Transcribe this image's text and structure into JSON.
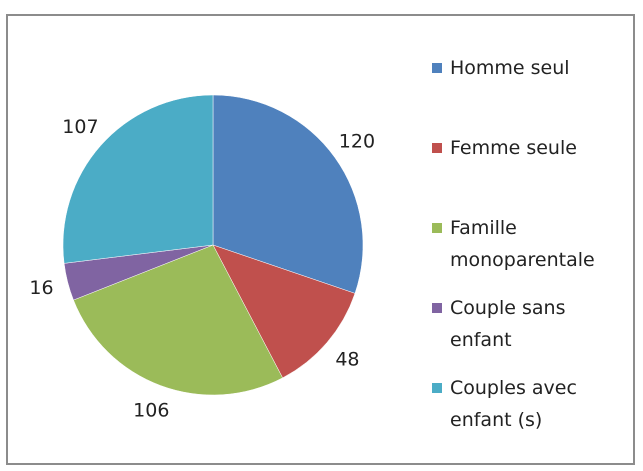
{
  "chart_data": {
    "type": "pie",
    "categories": [
      "Homme seul",
      "Femme seule",
      "Famille monoparentale",
      "Couple sans enfant",
      "Couples avec enfant (s)"
    ],
    "values": [
      120,
      48,
      106,
      16,
      107
    ],
    "colors": [
      "#4f81bd",
      "#c0504d",
      "#9bbb59",
      "#8064a2",
      "#4bacc6"
    ],
    "legend": "right"
  }
}
